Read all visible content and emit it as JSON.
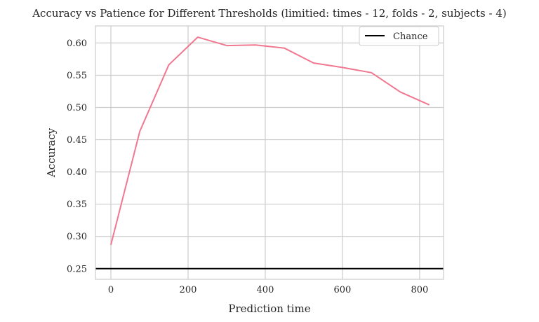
{
  "chart_data": {
    "type": "line",
    "title": "Accuracy vs Patience for Different Thresholds (limitied: times - 12, folds - 2, subjects - 4)",
    "xlabel": "Prediction time",
    "ylabel": "Accuracy",
    "xlim": [
      -40,
      862
    ],
    "ylim": [
      0.2335,
      0.6265
    ],
    "xticks": [
      0,
      200,
      400,
      600,
      800
    ],
    "xtick_labels": [
      "0",
      "200",
      "400",
      "600",
      "800"
    ],
    "yticks": [
      0.25,
      0.3,
      0.35,
      0.4,
      0.45,
      0.5,
      0.55,
      0.6
    ],
    "ytick_labels": [
      "0.25",
      "0.30",
      "0.35",
      "0.40",
      "0.45",
      "0.50",
      "0.55",
      "0.60"
    ],
    "grid": true,
    "legend_position": "top-right",
    "series": [
      {
        "values_x": [
          0,
          75,
          150,
          225,
          300,
          375,
          450,
          525,
          600,
          675,
          750,
          825
        ],
        "values_y": [
          0.287,
          0.463,
          0.566,
          0.609,
          0.596,
          0.597,
          0.592,
          0.569,
          0.562,
          0.554,
          0.524,
          0.504
        ],
        "color": "#f07890"
      }
    ],
    "hlines": [
      {
        "name": "Chance",
        "y": 0.25,
        "color": "#000000"
      }
    ],
    "legend": [
      {
        "label": "Chance",
        "color": "#000000"
      }
    ]
  }
}
